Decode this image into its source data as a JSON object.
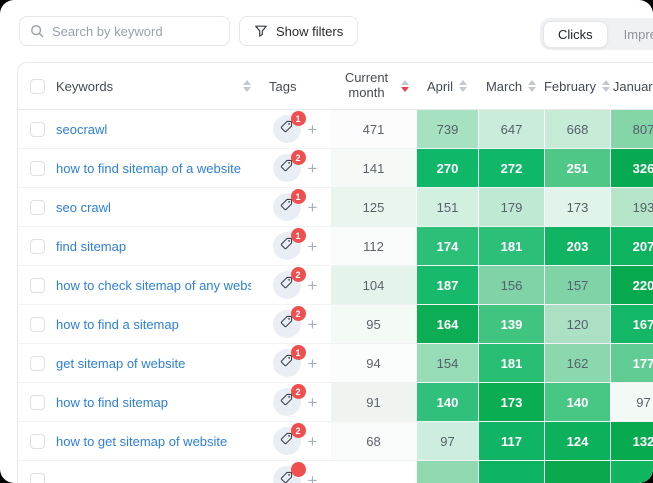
{
  "toolbar": {
    "search": {
      "placeholder": "Search by keyword",
      "icon": "magnifier"
    },
    "filters_button": {
      "label": "Show filters",
      "icon": "funnel"
    },
    "metric_toggle": {
      "options": [
        "Clicks",
        "Impressions"
      ],
      "selected": "Clicks"
    }
  },
  "table": {
    "columns": {
      "keywords_label": "Keywords",
      "tags_label": "Tags",
      "current_month_label": "Current month",
      "months": [
        "April",
        "March",
        "February",
        "January"
      ]
    },
    "sort": {
      "column": "Current month",
      "direction": "desc",
      "active_color": "#e5424d"
    },
    "rows": [
      {
        "keyword": "seocrawl",
        "tag_count": "1",
        "current": {
          "v": "471",
          "bg": "#fbfcfb"
        },
        "months": [
          {
            "v": "739",
            "bg": "#a6e1c2",
            "fg": "dark"
          },
          {
            "v": "647",
            "bg": "#c9edda",
            "fg": "dark"
          },
          {
            "v": "668",
            "bg": "#c6ecd8",
            "fg": "dark"
          },
          {
            "v": "807",
            "bg": "#84d5a8",
            "fg": "dark"
          }
        ]
      },
      {
        "keyword": "how to find sitemap of a website",
        "tag_count": "2",
        "current": {
          "v": "141",
          "bg": "#f6faf7"
        },
        "months": [
          {
            "v": "270",
            "bg": "#0fb768",
            "fg": "light"
          },
          {
            "v": "272",
            "bg": "#0fb768",
            "fg": "light"
          },
          {
            "v": "251",
            "bg": "#4fc787",
            "fg": "light"
          },
          {
            "v": "326",
            "bg": "#07aa51",
            "fg": "light"
          }
        ]
      },
      {
        "keyword": "seo crawl",
        "tag_count": "1",
        "current": {
          "v": "125",
          "bg": "#e8f6ee"
        },
        "months": [
          {
            "v": "151",
            "bg": "#d2f0e0",
            "fg": "dark"
          },
          {
            "v": "179",
            "bg": "#bfe9d2",
            "fg": "dark"
          },
          {
            "v": "173",
            "bg": "#e0f4e9",
            "fg": "dark"
          },
          {
            "v": "193",
            "bg": "#b7e5ca",
            "fg": "dark"
          }
        ]
      },
      {
        "keyword": "find sitemap",
        "tag_count": "1",
        "current": {
          "v": "112",
          "bg": "#fafcfb"
        },
        "months": [
          {
            "v": "174",
            "bg": "#2cbf78",
            "fg": "light"
          },
          {
            "v": "181",
            "bg": "#2cbf78",
            "fg": "light"
          },
          {
            "v": "203",
            "bg": "#10b463",
            "fg": "light"
          },
          {
            "v": "207",
            "bg": "#0db35e",
            "fg": "light"
          }
        ]
      },
      {
        "keyword": "how to check sitemap of any website",
        "tag_count": "2",
        "current": {
          "v": "104",
          "bg": "#e5f4eb"
        },
        "months": [
          {
            "v": "187",
            "bg": "#17ba6b",
            "fg": "light"
          },
          {
            "v": "156",
            "bg": "#7fd3a6",
            "fg": "dark"
          },
          {
            "v": "157",
            "bg": "#7fd3a6",
            "fg": "dark"
          },
          {
            "v": "220",
            "bg": "#06a94e",
            "fg": "light"
          }
        ]
      },
      {
        "keyword": "how to find a sitemap",
        "tag_count": "2",
        "current": {
          "v": "95",
          "bg": "#f4faf6"
        },
        "months": [
          {
            "v": "164",
            "bg": "#0cad55",
            "fg": "light"
          },
          {
            "v": "139",
            "bg": "#40c480",
            "fg": "light"
          },
          {
            "v": "120",
            "bg": "#abe0c4",
            "fg": "dark"
          },
          {
            "v": "167",
            "bg": "#13b766",
            "fg": "light"
          }
        ]
      },
      {
        "keyword": "get sitemap of website",
        "tag_count": "1",
        "current": {
          "v": "94",
          "bg": "#fbfdfc"
        },
        "months": [
          {
            "v": "154",
            "bg": "#97dbb7",
            "fg": "dark"
          },
          {
            "v": "181",
            "bg": "#28be74",
            "fg": "light"
          },
          {
            "v": "162",
            "bg": "#8bd8ae",
            "fg": "dark"
          },
          {
            "v": "177",
            "bg": "#60cb92",
            "fg": "light"
          }
        ]
      },
      {
        "keyword": "how to find sitemap",
        "tag_count": "2",
        "current": {
          "v": "91",
          "bg": "#eff4f1"
        },
        "months": [
          {
            "v": "140",
            "bg": "#31c07b",
            "fg": "light"
          },
          {
            "v": "173",
            "bg": "#0bad52",
            "fg": "light"
          },
          {
            "v": "140",
            "bg": "#47c783",
            "fg": "light"
          },
          {
            "v": "97",
            "bg": "#f3faf6",
            "fg": "dark"
          }
        ]
      },
      {
        "keyword": "how to get sitemap of website",
        "tag_count": "2",
        "current": {
          "v": "68",
          "bg": "#f8fbf9"
        },
        "months": [
          {
            "v": "97",
            "bg": "#cdeede",
            "fg": "dark"
          },
          {
            "v": "117",
            "bg": "#10b464",
            "fg": "light"
          },
          {
            "v": "124",
            "bg": "#0db05b",
            "fg": "light"
          },
          {
            "v": "132",
            "bg": "#07aa4f",
            "fg": "light"
          }
        ]
      },
      {
        "keyword": "",
        "tag_count": "",
        "partial": true,
        "current": {
          "v": "",
          "bg": "#ffffff"
        },
        "months": [
          {
            "v": "",
            "bg": "#8fd8b0",
            "fg": "dark"
          },
          {
            "v": "",
            "bg": "#0db360",
            "fg": "light"
          },
          {
            "v": "",
            "bg": "#0aa84d",
            "fg": "light"
          },
          {
            "v": "",
            "bg": "#10b55f",
            "fg": "light"
          }
        ]
      }
    ]
  },
  "colors": {
    "link_blue": "#2d7fd8",
    "badge_red": "#f04f4f",
    "heat_green_max": "#06a94e",
    "sort_active_red": "#e5424d",
    "border_gray": "#e7eaed"
  }
}
